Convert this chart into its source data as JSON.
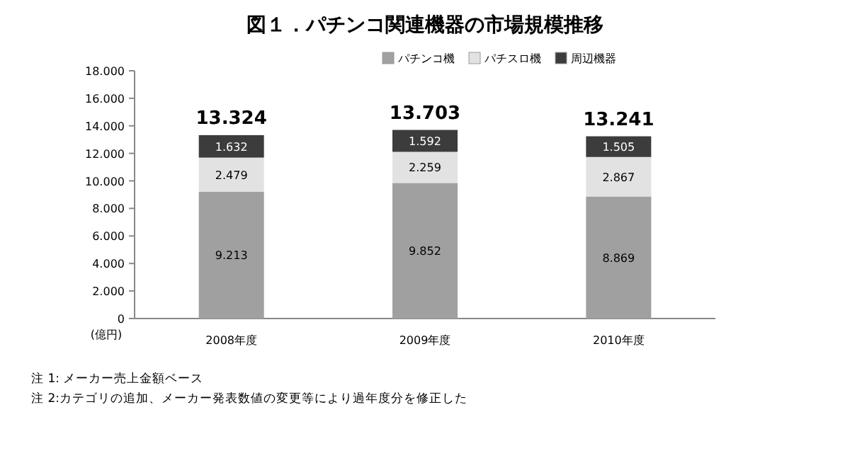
{
  "chart_data": {
    "type": "bar",
    "stacked": true,
    "title": "図１．パチンコ関連機器の市場規模推移",
    "ylabel": "(億円)",
    "categories": [
      "2008年度",
      "2009年度",
      "2010年度"
    ],
    "series": [
      {
        "name": "パチンコ機",
        "color": "#a0a0a0",
        "values": [
          9213,
          9852,
          8869
        ],
        "value_labels": [
          "9.213",
          "9.852",
          "8.869"
        ]
      },
      {
        "name": "パチスロ機",
        "color": "#e2e2e2",
        "values": [
          2479,
          2259,
          2867
        ],
        "value_labels": [
          "2.479",
          "2.259",
          "2.867"
        ]
      },
      {
        "name": "周辺機器",
        "color": "#3c3c3c",
        "values": [
          1632,
          1592,
          1505
        ],
        "value_labels": [
          "1.632",
          "1.592",
          "1.505"
        ]
      }
    ],
    "totals": [
      "13.324",
      "13.703",
      "13.241"
    ],
    "ylim": [
      0,
      18000
    ],
    "yticks": [
      {
        "value": 0,
        "label": "0"
      },
      {
        "value": 2000,
        "label": "2.000"
      },
      {
        "value": 4000,
        "label": "4.000"
      },
      {
        "value": 6000,
        "label": "6.000"
      },
      {
        "value": 8000,
        "label": "8.000"
      },
      {
        "value": 10000,
        "label": "10.000"
      },
      {
        "value": 12000,
        "label": "12.000"
      },
      {
        "value": 14000,
        "label": "14.000"
      },
      {
        "value": 16000,
        "label": "16.000"
      },
      {
        "value": 18000,
        "label": "18.000"
      }
    ],
    "legend": "top right",
    "annotations": [
      "注 1: メーカー売上金額ベース",
      "注 2:カテゴリの追加、メーカー発表数値の変更等により過年度分を修正した"
    ]
  }
}
